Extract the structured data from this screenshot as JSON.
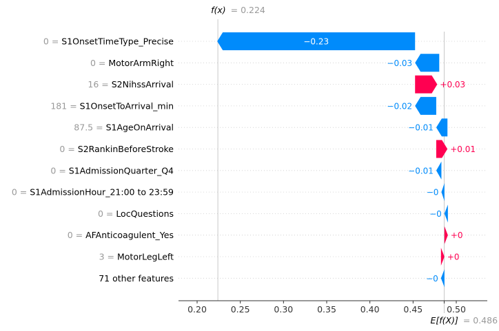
{
  "chart_data": {
    "type": "waterfall",
    "fx_label": "f(x)",
    "fx_value_text": "= 0.224",
    "fx": 0.224,
    "ex_label": "E[f(X)]",
    "ex_value_text": "= 0.486",
    "ex": 0.486,
    "xlim": [
      0.18,
      0.535
    ],
    "xticks": [
      0.2,
      0.25,
      0.3,
      0.35,
      0.4,
      0.45,
      0.5
    ],
    "xtick_labels": [
      "0.20",
      "0.25",
      "0.30",
      "0.35",
      "0.40",
      "0.45",
      "0.50"
    ],
    "features": [
      {
        "value": "0",
        "name": "S1OnsetTimeType_Precise",
        "start": 0.4523,
        "end": 0.2233,
        "label": "−0.23"
      },
      {
        "value": "0",
        "name": "MotorArmRight",
        "start": 0.4803,
        "end": 0.4523,
        "label": "−0.03"
      },
      {
        "value": "16",
        "name": "S2NihssArrival",
        "start": 0.4523,
        "end": 0.478,
        "label": "+0.03"
      },
      {
        "value": "181",
        "name": "S1OnsetToArrival_min",
        "start": 0.4768,
        "end": 0.4523,
        "label": "−0.02"
      },
      {
        "value": "87.5",
        "name": "S1AgeOnArrival",
        "start": 0.4898,
        "end": 0.4768,
        "label": "−0.01"
      },
      {
        "value": "0",
        "name": "S2RankinBeforeStroke",
        "start": 0.4768,
        "end": 0.4898,
        "label": "+0.01"
      },
      {
        "value": "0",
        "name": "S1AdmissionQuarter_Q4",
        "start": 0.4828,
        "end": 0.4768,
        "label": "−0.01"
      },
      {
        "value": "0",
        "name": "S1AdmissionHour_21:00 to 23:59",
        "start": 0.4863,
        "end": 0.4828,
        "label": "−0"
      },
      {
        "value": "0",
        "name": "LocQuestions",
        "start": 0.4903,
        "end": 0.4863,
        "label": "−0"
      },
      {
        "value": "0",
        "name": "AFAnticoagulent_Yes",
        "start": 0.4863,
        "end": 0.4903,
        "label": "+0"
      },
      {
        "value": "3",
        "name": "MotorLegLeft",
        "start": 0.4823,
        "end": 0.4863,
        "label": "+0"
      },
      {
        "value": "",
        "name": "71 other features",
        "start": 0.4863,
        "end": 0.4823,
        "label": "−0"
      }
    ],
    "colors": {
      "negative": "#008bfb",
      "positive": "#ff0051",
      "bar_text": "#ffffff",
      "reference_text": "#999999",
      "axis_text": "#333333"
    }
  }
}
